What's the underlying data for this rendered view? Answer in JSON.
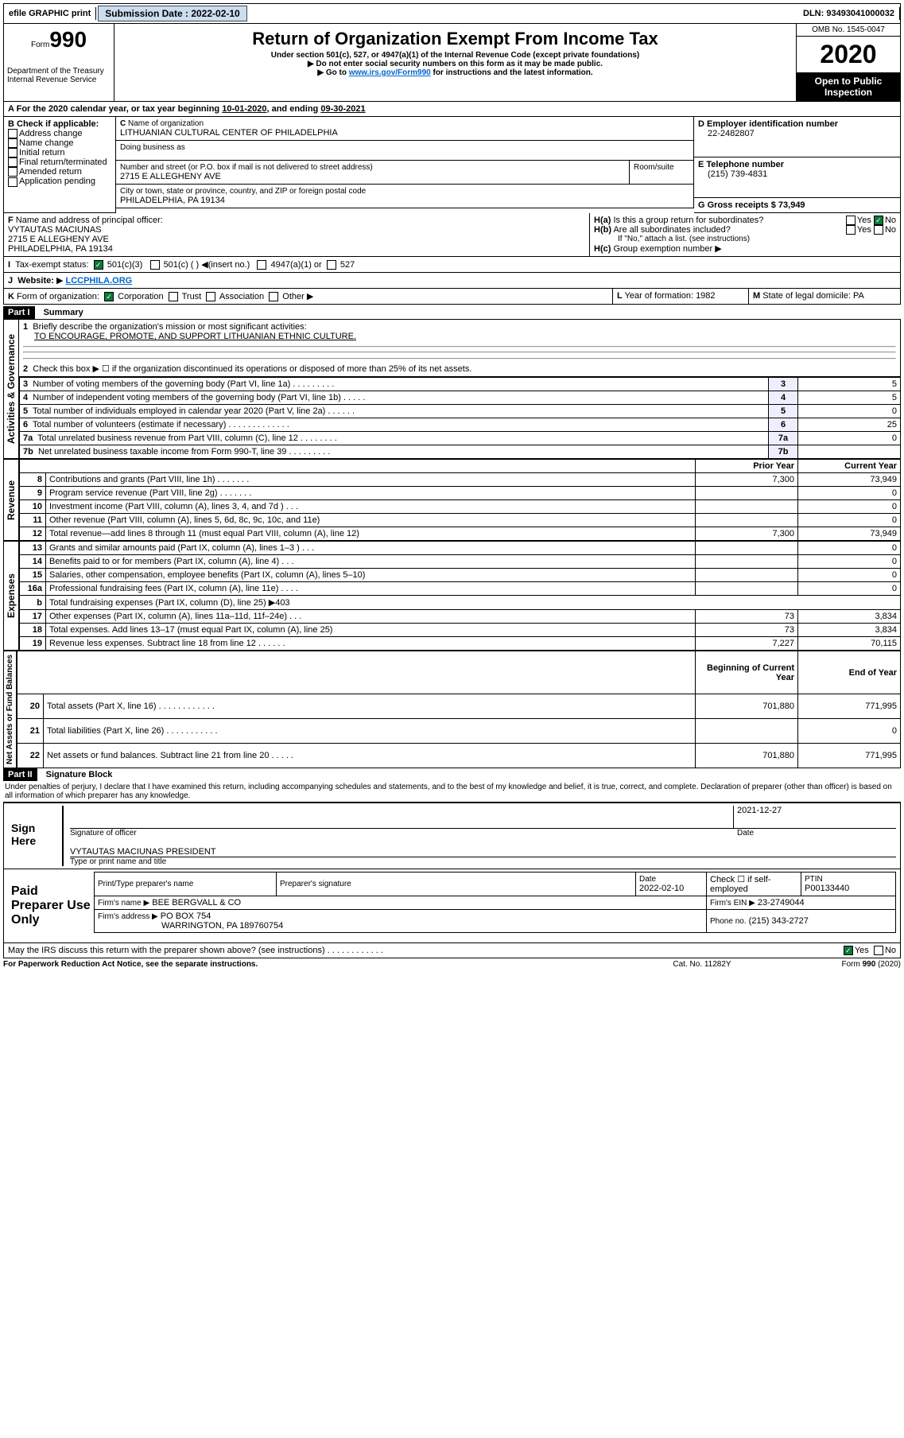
{
  "topbar": {
    "efile": "efile GRAPHIC print",
    "subm_label": "Submission Date : ",
    "subm_date": "2022-02-10",
    "dln_label": "DLN: ",
    "dln": "93493041000032"
  },
  "header": {
    "form_word": "Form",
    "form_num": "990",
    "dept": "Department of the Treasury\nInternal Revenue Service",
    "title": "Return of Organization Exempt From Income Tax",
    "sub1": "Under section 501(c), 527, or 4947(a)(1) of the Internal Revenue Code (except private foundations)",
    "sub2": "Do not enter social security numbers on this form as it may be made public.",
    "sub3_pre": "Go to ",
    "sub3_link": "www.irs.gov/Form990",
    "sub3_post": " for instructions and the latest information.",
    "omb": "OMB No. 1545-0047",
    "year": "2020",
    "open": "Open to Public Inspection"
  },
  "lineA": {
    "pre": "For the 2020 calendar year, or tax year beginning ",
    "begin": "10-01-2020",
    "mid": ", and ending ",
    "end": "09-30-2021"
  },
  "B": {
    "label": "Check if applicable:",
    "items": [
      "Address change",
      "Name change",
      "Initial return",
      "Final return/terminated",
      "Amended return",
      "Application pending"
    ]
  },
  "C": {
    "name_label": "Name of organization",
    "name": "LITHUANIAN CULTURAL CENTER OF PHILADELPHIA",
    "dba_label": "Doing business as",
    "addr_label": "Number and street (or P.O. box if mail is not delivered to street address)",
    "room_label": "Room/suite",
    "addr": "2715 E ALLEGHENY AVE",
    "city_label": "City or town, state or province, country, and ZIP or foreign postal code",
    "city": "PHILADELPHIA, PA  19134"
  },
  "D": {
    "label": "Employer identification number",
    "val": "22-2482807"
  },
  "E": {
    "label": "Telephone number",
    "val": "(215) 739-4831"
  },
  "G": {
    "label": "Gross receipts $ ",
    "val": "73,949"
  },
  "F": {
    "label": "Name and address of principal officer:",
    "name": "VYTAUTAS MACIUNAS",
    "addr1": "2715 E ALLEGHENY AVE",
    "addr2": "PHILADELPHIA, PA  19134"
  },
  "H": {
    "a": "Is this a group return for subordinates?",
    "b": "Are all subordinates included?",
    "b_note": "If \"No,\" attach a list. (see instructions)",
    "c": "Group exemption number",
    "yes": "Yes",
    "no": "No"
  },
  "I": {
    "label": "Tax-exempt status:",
    "c3": "501(c)(3)",
    "cx": "501(c) ( )",
    "insert": "(insert no.)",
    "a1": "4947(a)(1) or",
    "s527": "527"
  },
  "J": {
    "label": "Website:",
    "val": "LCCPHILA.ORG"
  },
  "K": {
    "label": "Form of organization:",
    "opts": [
      "Corporation",
      "Trust",
      "Association",
      "Other"
    ]
  },
  "L": {
    "label": "Year of formation:",
    "val": "1982"
  },
  "M": {
    "label": "State of legal domicile:",
    "val": "PA"
  },
  "part1": {
    "title": "Part I",
    "sub": "Summary",
    "l1": "Briefly describe the organization's mission or most significant activities:",
    "l1_val": "TO ENCOURAGE, PROMOTE, AND SUPPORT LITHUANIAN ETHNIC CULTURE.",
    "l2": "Check this box ▶ ☐ if the organization discontinued its operations or disposed of more than 25% of its net assets.",
    "rows": [
      {
        "n": "3",
        "d": "Number of voting members of the governing body (Part VI, line 1a)   .   .   .   .   .   .   .   .   .",
        "rn": "3",
        "v": "5"
      },
      {
        "n": "4",
        "d": "Number of independent voting members of the governing body (Part VI, line 1b)   .   .   .   .   .",
        "rn": "4",
        "v": "5"
      },
      {
        "n": "5",
        "d": "Total number of individuals employed in calendar year 2020 (Part V, line 2a)   .   .   .   .   .   .",
        "rn": "5",
        "v": "0"
      },
      {
        "n": "6",
        "d": "Total number of volunteers (estimate if necessary)   .   .   .   .   .   .   .   .   .   .   .   .   .",
        "rn": "6",
        "v": "25"
      },
      {
        "n": "7a",
        "d": "Total unrelated business revenue from Part VIII, column (C), line 12   .   .   .   .   .   .   .   .",
        "rn": "7a",
        "v": "0"
      },
      {
        "n": "7b",
        "d": "Net unrelated business taxable income from Form 990-T, line 39   .   .   .   .   .   .   .   .   .",
        "rn": "7b",
        "v": ""
      }
    ],
    "prior": "Prior Year",
    "current": "Current Year",
    "rev": [
      {
        "n": "8",
        "d": "Contributions and grants (Part VIII, line 1h)   .   .   .   .   .   .   .",
        "p": "7,300",
        "c": "73,949"
      },
      {
        "n": "9",
        "d": "Program service revenue (Part VIII, line 2g)   .   .   .   .   .   .   .",
        "p": "",
        "c": "0"
      },
      {
        "n": "10",
        "d": "Investment income (Part VIII, column (A), lines 3, 4, and 7d )   .   .   .",
        "p": "",
        "c": "0"
      },
      {
        "n": "11",
        "d": "Other revenue (Part VIII, column (A), lines 5, 6d, 8c, 9c, 10c, and 11e)",
        "p": "",
        "c": "0"
      },
      {
        "n": "12",
        "d": "Total revenue—add lines 8 through 11 (must equal Part VIII, column (A), line 12)",
        "p": "7,300",
        "c": "73,949"
      }
    ],
    "exp": [
      {
        "n": "13",
        "d": "Grants and similar amounts paid (Part IX, column (A), lines 1–3 )   .   .   .",
        "p": "",
        "c": "0"
      },
      {
        "n": "14",
        "d": "Benefits paid to or for members (Part IX, column (A), line 4)   .   .   .",
        "p": "",
        "c": "0"
      },
      {
        "n": "15",
        "d": "Salaries, other compensation, employee benefits (Part IX, column (A), lines 5–10)",
        "p": "",
        "c": "0"
      },
      {
        "n": "16a",
        "d": "Professional fundraising fees (Part IX, column (A), line 11e)   .   .   .   .",
        "p": "",
        "c": "0"
      },
      {
        "n": "b",
        "d": "Total fundraising expenses (Part IX, column (D), line 25) ▶403",
        "p": "—",
        "c": "—"
      },
      {
        "n": "17",
        "d": "Other expenses (Part IX, column (A), lines 11a–11d, 11f–24e)   .   .   .",
        "p": "73",
        "c": "3,834"
      },
      {
        "n": "18",
        "d": "Total expenses. Add lines 13–17 (must equal Part IX, column (A), line 25)",
        "p": "73",
        "c": "3,834"
      },
      {
        "n": "19",
        "d": "Revenue less expenses. Subtract line 18 from line 12   .   .   .   .   .   .",
        "p": "7,227",
        "c": "70,115"
      }
    ],
    "boy": "Beginning of Current Year",
    "eoy": "End of Year",
    "net": [
      {
        "n": "20",
        "d": "Total assets (Part X, line 16)   .   .   .   .   .   .   .   .   .   .   .   .",
        "p": "701,880",
        "c": "771,995"
      },
      {
        "n": "21",
        "d": "Total liabilities (Part X, line 26)   .   .   .   .   .   .   .   .   .   .   .",
        "p": "",
        "c": "0"
      },
      {
        "n": "22",
        "d": "Net assets or fund balances. Subtract line 21 from line 20  .   .   .   .   .",
        "p": "701,880",
        "c": "771,995"
      }
    ],
    "vert_ag": "Activities & Governance",
    "vert_rev": "Revenue",
    "vert_exp": "Expenses",
    "vert_net": "Net Assets or Fund Balances"
  },
  "part2": {
    "title": "Part II",
    "sub": "Signature Block",
    "decl": "Under penalties of perjury, I declare that I have examined this return, including accompanying schedules and statements, and to the best of my knowledge and belief, it is true, correct, and complete. Declaration of preparer (other than officer) is based on all information of which preparer has any knowledge.",
    "sign_here": "Sign Here",
    "sig_of": "Signature of officer",
    "date": "Date",
    "sig_date": "2021-12-27",
    "sig_name": "VYTAUTAS MACIUNAS PRESIDENT",
    "sig_type": "Type or print name and title",
    "paid": "Paid Preparer Use Only",
    "p_name_l": "Print/Type preparer's name",
    "p_sig_l": "Preparer's signature",
    "p_date_l": "Date",
    "p_date": "2022-02-10",
    "p_check": "Check ☐ if self-employed",
    "ptin_l": "PTIN",
    "ptin": "P00133440",
    "firm_l": "Firm's name ▶",
    "firm": "BEE BERGVALL & CO",
    "ein_l": "Firm's EIN ▶",
    "ein": "23-2749044",
    "addr_l": "Firm's address ▶",
    "addr": "PO BOX 754",
    "addr2": "WARRINGTON, PA  189760754",
    "phone_l": "Phone no.",
    "phone": "(215) 343-2727",
    "discuss": "May the IRS discuss this return with the preparer shown above? (see instructions)   .   .   .   .   .   .   .   .   .   .   .   .",
    "yes": "Yes",
    "no": "No"
  },
  "footer": {
    "pra": "For Paperwork Reduction Act Notice, see the separate instructions.",
    "cat": "Cat. No. 11282Y",
    "form": "Form 990 (2020)"
  },
  "colors": {
    "btn_bg": "#cde",
    "link": "#0066cc",
    "check": "#0a7a3a",
    "numcell": "#eef"
  }
}
